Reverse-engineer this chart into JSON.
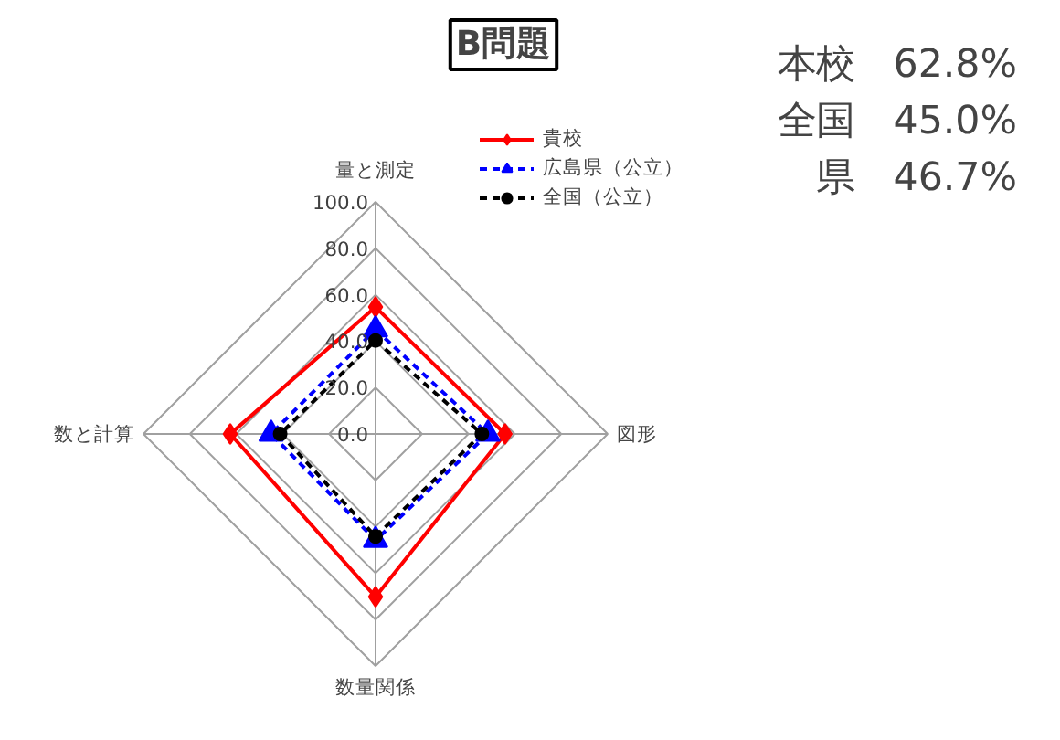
{
  "chart_data": {
    "type": "radar",
    "title": "B問題",
    "categories": [
      "量と測定",
      "図形",
      "数量関係",
      "数と計算"
    ],
    "ylim": [
      0,
      100
    ],
    "yticks": [
      {
        "value": 0,
        "label": "0.0"
      },
      {
        "value": 20,
        "label": "20.0"
      },
      {
        "value": 40,
        "label": "40.0"
      },
      {
        "value": 60,
        "label": "60.0"
      },
      {
        "value": 80,
        "label": "80.0"
      },
      {
        "value": 100,
        "label": "100.0"
      }
    ],
    "grid": true,
    "legend": "top right",
    "series": [
      {
        "name": "貴校",
        "color": "#ff0000",
        "marker": "diamond",
        "line_style": "solid",
        "values": [
          54.7,
          55.8,
          70.2,
          62.6
        ]
      },
      {
        "name": "広島県（公立）",
        "color": "#0000ff",
        "marker": "triangle",
        "line_style": "dashed",
        "values": [
          45.0,
          48.4,
          45.8,
          45.0
        ]
      },
      {
        "name": "全国（公立）",
        "color": "#000000",
        "marker": "circle",
        "line_style": "dashed",
        "values": [
          40.3,
          45.8,
          44.2,
          41.1
        ]
      }
    ],
    "annotations": [
      "本校　62.8%",
      "全国　45.0%",
      "県　46.7%"
    ]
  }
}
